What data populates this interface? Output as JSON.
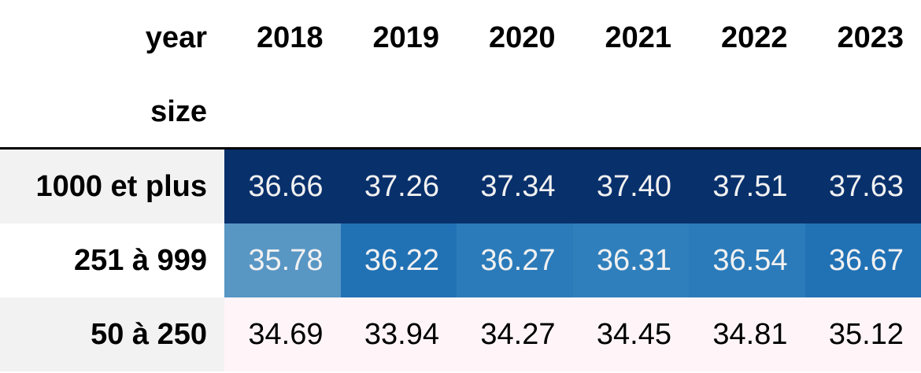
{
  "chart_data": {
    "type": "heatmap",
    "column_index_label": "year",
    "row_index_label": "size",
    "columns": [
      "2018",
      "2019",
      "2020",
      "2021",
      "2022",
      "2023"
    ],
    "rows": [
      "1000 et plus",
      "251 à 999",
      "50 à 250"
    ],
    "values": [
      [
        "36.66",
        "37.26",
        "37.34",
        "37.40",
        "37.51",
        "37.63"
      ],
      [
        "35.78",
        "36.22",
        "36.27",
        "36.31",
        "36.54",
        "36.67"
      ],
      [
        "34.69",
        "33.94",
        "34.27",
        "34.45",
        "34.81",
        "35.12"
      ]
    ],
    "colors": [
      [
        "#08306b",
        "#08306b",
        "#08306b",
        "#08306b",
        "#08306b",
        "#08306b"
      ],
      [
        "#5896c4",
        "#2171b5",
        "#2b7bba",
        "#2f7fbc",
        "#2b7bba",
        "#2171b5"
      ],
      [
        "#fff5f8",
        "#fff5f8",
        "#fff5f8",
        "#fff5f8",
        "#fff5f8",
        "#fff5f8"
      ]
    ],
    "text_colors": [
      [
        "#f1f1f1",
        "#f1f1f1",
        "#f1f1f1",
        "#f1f1f1",
        "#f1f1f1",
        "#f1f1f1"
      ],
      [
        "#f1f1f1",
        "#f1f1f1",
        "#f1f1f1",
        "#f1f1f1",
        "#f1f1f1",
        "#f1f1f1"
      ],
      [
        "#000000",
        "#000000",
        "#000000",
        "#000000",
        "#000000",
        "#000000"
      ]
    ],
    "row_header_bg": [
      "#f2f2f2",
      "#ffffff",
      "#f2f2f2"
    ]
  }
}
